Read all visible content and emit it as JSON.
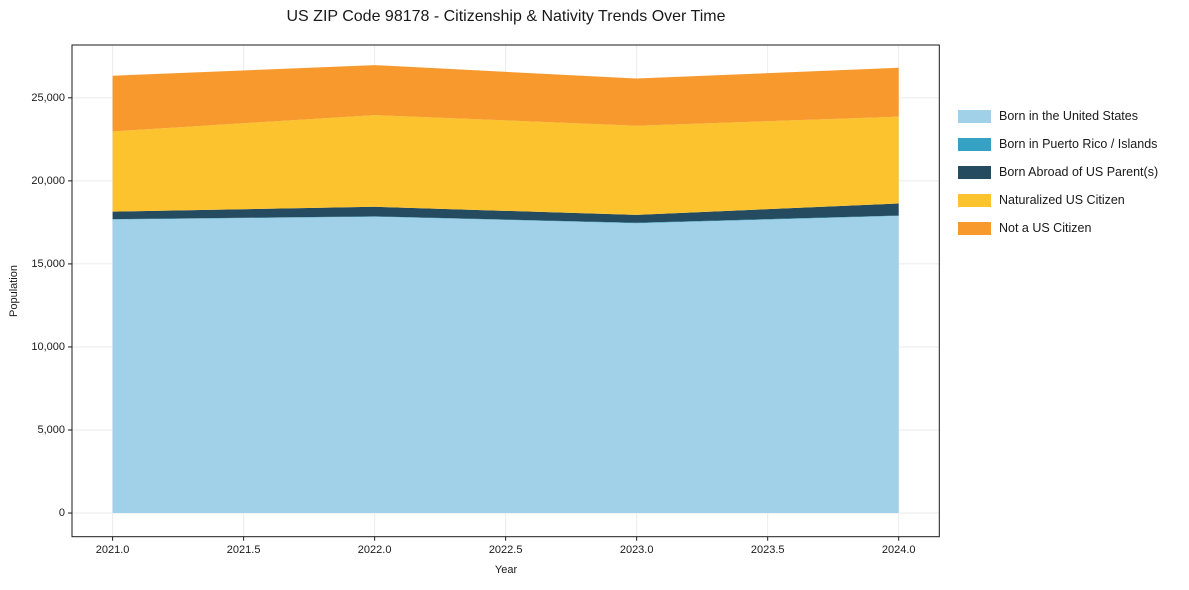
{
  "chart_data": {
    "type": "area",
    "stacked": true,
    "title": "US ZIP Code 98178 - Citizenship & Nativity Trends Over Time",
    "xlabel": "Year",
    "ylabel": "Population",
    "x": [
      2021,
      2022,
      2023,
      2024
    ],
    "series": [
      {
        "name": "Born in the United States",
        "color": "#a1d1e8",
        "values": [
          17670,
          17840,
          17450,
          17890
        ]
      },
      {
        "name": "Born in Puerto Rico / Islands",
        "color": "#36a2c3",
        "values": [
          25,
          25,
          25,
          25
        ]
      },
      {
        "name": "Born Abroad of US Parent(s)",
        "color": "#254b60",
        "values": [
          450,
          575,
          475,
          725
        ]
      },
      {
        "name": "Naturalized US Citizen",
        "color": "#fcc32e",
        "values": [
          4830,
          5520,
          5370,
          5225
        ]
      },
      {
        "name": "Not a US Citizen",
        "color": "#f8992e",
        "values": [
          3355,
          3010,
          2840,
          2945
        ]
      }
    ],
    "totals": [
      26330,
      26970,
      26160,
      26810
    ],
    "xlim": [
      2020.845,
      2024.155
    ],
    "ylim": [
      -1425,
      28180
    ],
    "xticks": [
      {
        "v": 2021.0,
        "label": "2021.0"
      },
      {
        "v": 2021.5,
        "label": "2021.5"
      },
      {
        "v": 2022.0,
        "label": "2022.0"
      },
      {
        "v": 2022.5,
        "label": "2022.5"
      },
      {
        "v": 2023.0,
        "label": "2023.0"
      },
      {
        "v": 2023.5,
        "label": "2023.5"
      },
      {
        "v": 2024.0,
        "label": "2024.0"
      }
    ],
    "yticks": [
      {
        "v": 0,
        "label": "0"
      },
      {
        "v": 5000,
        "label": "5,000"
      },
      {
        "v": 10000,
        "label": "10,000"
      },
      {
        "v": 15000,
        "label": "15,000"
      },
      {
        "v": 20000,
        "label": "20,000"
      },
      {
        "v": 25000,
        "label": "25,000"
      }
    ],
    "grid": true,
    "legend_position": "right"
  },
  "styles": {
    "background": "#ffffff",
    "grid_color": "#ebebeb",
    "axis_color": "#1a1a1a",
    "text_color": "#1a1a1a"
  }
}
